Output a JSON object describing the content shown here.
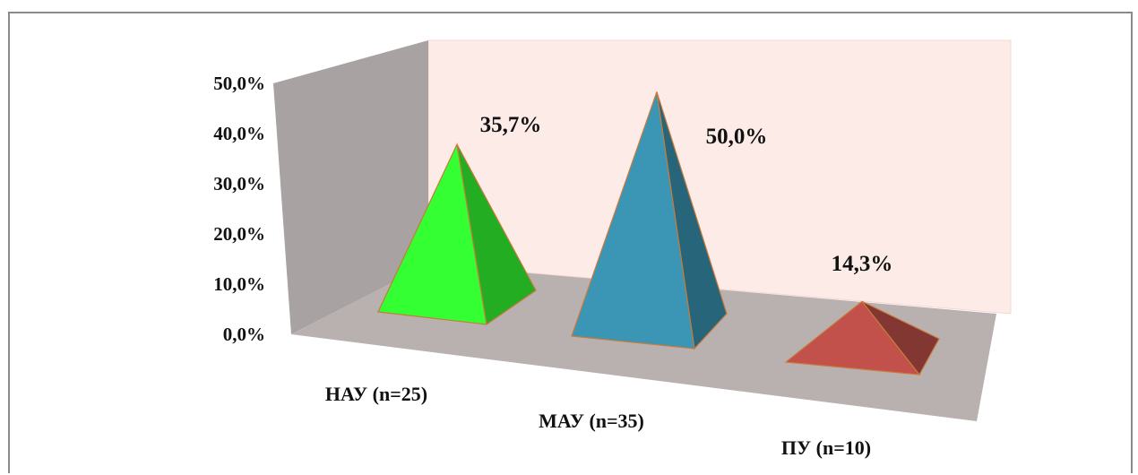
{
  "chart_data": {
    "type": "bar",
    "shape": "pyramid",
    "categories": [
      "НАУ (n=25)",
      "МАУ (n=35)",
      "ПУ (n=10)"
    ],
    "values": [
      35.7,
      50.0,
      14.3
    ],
    "data_labels": [
      "35,7%",
      "50,0%",
      "14,3%"
    ],
    "y_ticks": [
      "0,0%",
      "10,0%",
      "20,0%",
      "30,0%",
      "40,0%",
      "50,0%"
    ],
    "ylim": [
      0,
      50
    ],
    "grid": false,
    "legend": "none",
    "colors": {
      "series": [
        "#33ff33",
        "#3a96b4",
        "#c1514a"
      ],
      "back_wall": "#fdebe7",
      "side_wall": "#a8a2a2",
      "floor": "#b9b0b0",
      "edge": "#c87a3a"
    }
  }
}
